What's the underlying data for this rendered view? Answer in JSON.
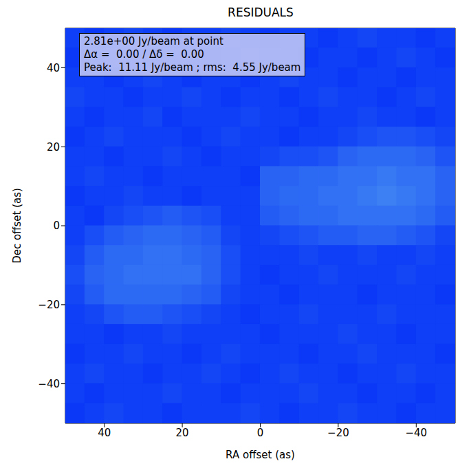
{
  "chart_data": {
    "type": "heatmap",
    "title": "RESIDUALS",
    "x_label": "RA offset (as)",
    "y_label": "Dec offset (as)",
    "annotation": [
      "2.81e+00 Jy/beam at point",
      "Δα =  0.00 / Δδ =  0.00",
      "Peak:  11.11 Jy/beam ; rms:  4.55 Jy/beam"
    ],
    "xlim": [
      -50,
      50
    ],
    "ylim": [
      -50,
      50
    ],
    "xticks": [
      40,
      20,
      0,
      {
        "value": -20,
        "label": "−20"
      },
      {
        "value": -40,
        "label": "−40"
      }
    ],
    "yticks": [
      {
        "value": -40,
        "label": "−40"
      },
      {
        "value": -20,
        "label": "−20"
      },
      0,
      20,
      40
    ],
    "grid": false,
    "colorscale": [
      "#0a38f6",
      "#3d80f3"
    ],
    "x": [
      47.5,
      42.5,
      37.5,
      32.5,
      27.5,
      22.5,
      17.5,
      12.5,
      7.5,
      2.5,
      -2.5,
      -7.5,
      -12.5,
      -17.5,
      -22.5,
      -27.5,
      -32.5,
      -37.5,
      -42.5,
      -47.5
    ],
    "y": [
      47.5,
      42.5,
      37.5,
      32.5,
      27.5,
      22.5,
      17.5,
      12.5,
      7.5,
      2.5,
      -2.5,
      -7.5,
      -12.5,
      -17.5,
      -22.5,
      -27.5,
      -32.5,
      -37.5,
      -42.5,
      -47.5
    ],
    "z": [
      [
        2,
        1,
        2,
        3,
        2,
        1,
        2,
        2,
        3,
        2,
        1,
        2,
        2,
        1,
        2,
        3,
        2,
        2,
        1,
        2
      ],
      [
        1,
        2,
        3,
        2,
        1,
        2,
        2,
        1,
        2,
        3,
        2,
        2,
        1,
        2,
        2,
        1,
        2,
        3,
        2,
        1
      ],
      [
        2,
        2,
        1,
        2,
        3,
        2,
        1,
        2,
        2,
        1,
        2,
        3,
        2,
        2,
        1,
        2,
        2,
        1,
        2,
        2
      ],
      [
        3,
        2,
        2,
        1,
        2,
        2,
        3,
        2,
        1,
        2,
        2,
        1,
        2,
        3,
        2,
        2,
        1,
        2,
        3,
        2
      ],
      [
        2,
        1,
        2,
        2,
        3,
        1,
        2,
        2,
        2,
        3,
        2,
        2,
        1,
        2,
        2,
        3,
        2,
        2,
        1,
        2
      ],
      [
        1,
        2,
        3,
        2,
        2,
        2,
        1,
        2,
        3,
        2,
        2,
        1,
        2,
        2,
        3,
        4,
        5,
        5,
        4,
        3
      ],
      [
        2,
        2,
        1,
        2,
        2,
        3,
        2,
        1,
        2,
        2,
        3,
        4,
        4,
        5,
        7,
        8,
        8,
        8,
        7,
        5
      ],
      [
        2,
        3,
        2,
        2,
        1,
        2,
        2,
        2,
        2,
        1,
        7,
        7,
        8,
        8,
        9,
        9,
        10,
        9,
        9,
        7
      ],
      [
        1,
        2,
        2,
        3,
        2,
        2,
        1,
        2,
        2,
        2,
        7,
        8,
        8,
        9,
        9,
        10,
        11.11,
        10,
        9,
        7
      ],
      [
        2,
        1,
        3,
        4,
        5,
        6,
        5,
        4,
        2,
        2,
        6,
        7,
        8,
        8,
        9,
        9,
        9,
        9,
        8,
        6
      ],
      [
        2,
        4,
        6,
        7,
        8,
        8,
        7,
        6,
        3,
        2,
        3,
        4,
        5,
        6,
        6,
        7,
        7,
        6,
        5,
        3
      ],
      [
        3,
        6,
        8,
        8,
        9,
        9,
        8,
        7,
        4,
        2,
        2,
        2,
        3,
        2,
        2,
        3,
        2,
        2,
        3,
        2
      ],
      [
        4,
        7,
        8,
        9,
        9,
        9,
        9,
        7,
        4,
        2,
        1,
        2,
        2,
        3,
        2,
        2,
        2,
        3,
        2,
        2
      ],
      [
        3,
        6,
        8,
        8,
        8,
        8,
        7,
        6,
        3,
        2,
        2,
        1,
        2,
        2,
        2,
        1,
        2,
        2,
        2,
        1
      ],
      [
        2,
        3,
        5,
        6,
        6,
        5,
        4,
        3,
        2,
        1,
        2,
        2,
        3,
        2,
        2,
        2,
        3,
        2,
        2,
        2
      ],
      [
        2,
        2,
        1,
        2,
        2,
        3,
        2,
        2,
        2,
        2,
        1,
        2,
        2,
        2,
        3,
        2,
        2,
        1,
        2,
        2
      ],
      [
        1,
        2,
        2,
        3,
        2,
        2,
        1,
        2,
        3,
        2,
        2,
        2,
        1,
        2,
        2,
        3,
        2,
        2,
        2,
        1
      ],
      [
        2,
        3,
        2,
        2,
        1,
        2,
        2,
        3,
        2,
        1,
        2,
        3,
        2,
        2,
        1,
        2,
        2,
        3,
        2,
        2
      ],
      [
        2,
        1,
        2,
        2,
        2,
        3,
        2,
        2,
        1,
        2,
        2,
        2,
        3,
        2,
        2,
        1,
        2,
        2,
        1,
        2
      ],
      [
        1,
        2,
        3,
        2,
        2,
        1,
        2,
        2,
        2,
        3,
        2,
        1,
        2,
        2,
        3,
        2,
        2,
        1,
        2,
        2
      ]
    ]
  }
}
